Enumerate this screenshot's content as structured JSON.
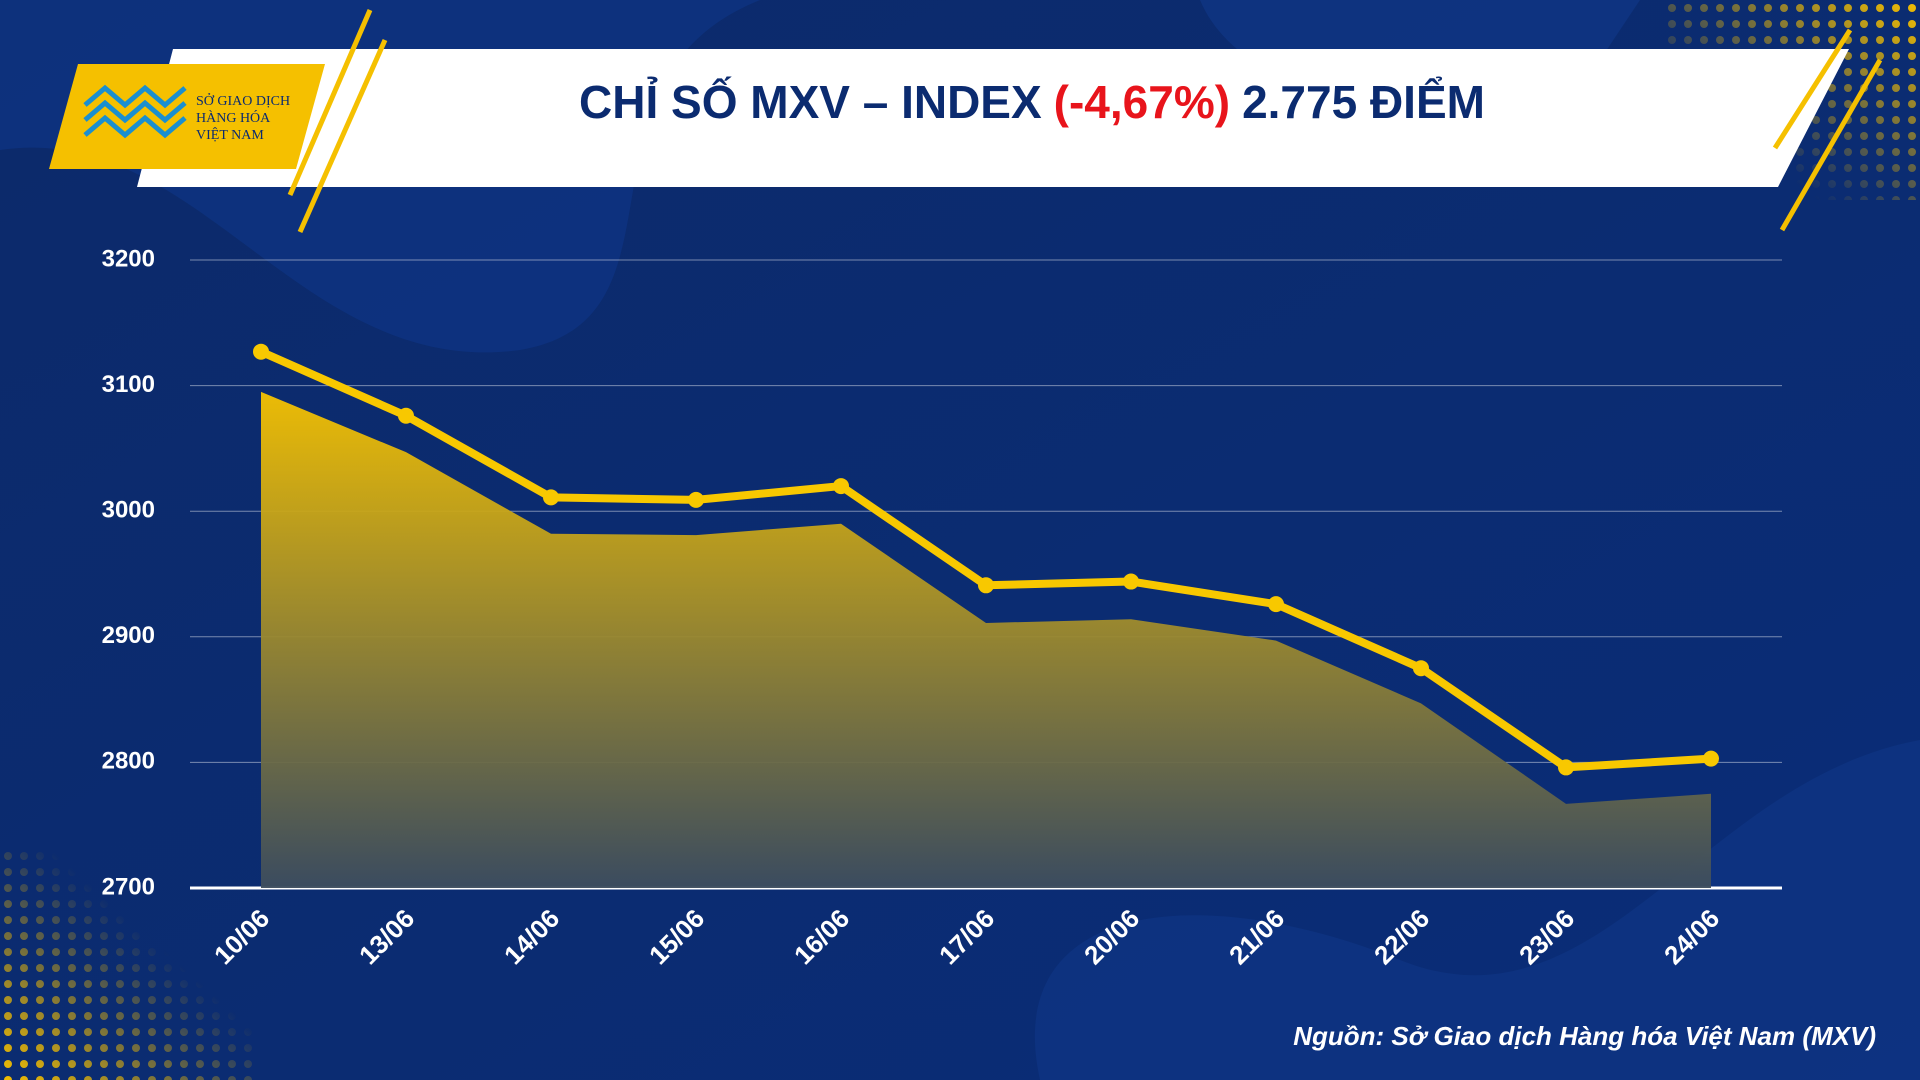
{
  "logo": {
    "lines": [
      "SỞ GIAO DỊCH",
      "HÀNG HÓA",
      "VIỆT NAM"
    ]
  },
  "chart_data": {
    "type": "line",
    "title": [
      "CHỈ SỐ MXV – INDEX",
      "(-4,67%)",
      "2.775 ĐIỂM"
    ],
    "source": "Nguồn: Sở Giao dịch Hàng hóa Việt Nam (MXV)",
    "categories": [
      "10/06",
      "13/06",
      "14/06",
      "15/06",
      "16/06",
      "17/06",
      "20/06",
      "21/06",
      "22/06",
      "23/06",
      "24/06"
    ],
    "series": [
      {
        "color": "#f5c000",
        "area": true,
        "values": [
          3095,
          3047,
          2982,
          2981,
          2990,
          2911,
          2914,
          2897,
          2847,
          2767,
          2775
        ]
      },
      {
        "color": "#f8c800",
        "area": false,
        "values": [
          3127,
          3076,
          3011,
          3009,
          3020,
          2941,
          2944,
          2926,
          2875,
          2796,
          2803
        ]
      }
    ],
    "ylim": [
      2700,
      3200
    ],
    "yticks": [
      2700,
      2800,
      2900,
      3000,
      3100,
      3200
    ],
    "grid": true
  }
}
